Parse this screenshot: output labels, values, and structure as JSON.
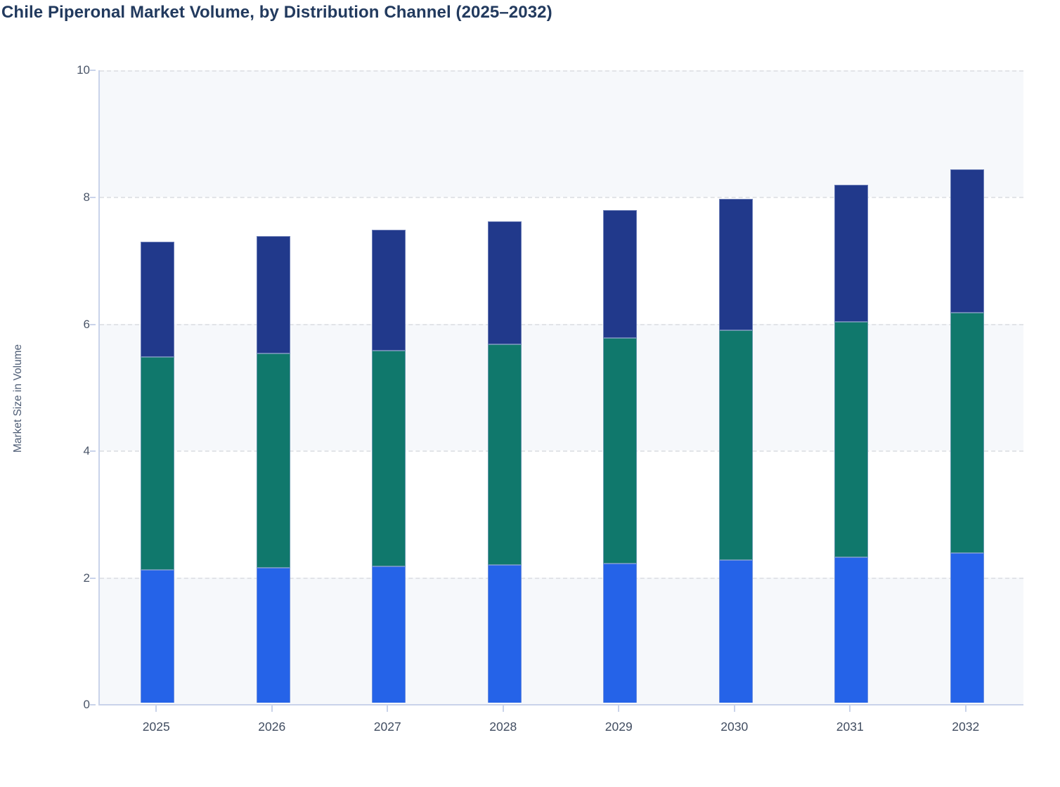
{
  "title": "Chile Piperonal Market Volume, by Distribution Channel (2025–2032)",
  "y_axis": {
    "label": "Market Size in Volume",
    "ticks": [
      0,
      2,
      4,
      6,
      8,
      10
    ],
    "range": [
      0,
      10
    ]
  },
  "x_axis": {
    "categories": [
      "2025",
      "2026",
      "2027",
      "2028",
      "2029",
      "2030",
      "2031",
      "2032"
    ]
  },
  "colors": {
    "bottom_segment": "#2563e8",
    "middle_segment": "#10786c",
    "top_segment": "#21398b",
    "title_text": "#223a5e",
    "axis_text": "#4a5568",
    "axis_line": "#c9d3ea",
    "gridline": "#e2e4e8",
    "shaded_band": "#f6f8fb"
  },
  "chart_data": {
    "type": "bar",
    "stacked": true,
    "title": "Chile Piperonal Market Volume, by Distribution Channel (2025–2032)",
    "xlabel": "",
    "ylabel": "Market Size in Volume",
    "ylim": [
      0,
      10
    ],
    "grid": "horizontal-dashed",
    "legend_position": "none",
    "categories": [
      "2025",
      "2026",
      "2027",
      "2028",
      "2029",
      "2030",
      "2031",
      "2032"
    ],
    "series": [
      {
        "name": "bottom (blue)",
        "values": [
          2.1,
          2.13,
          2.15,
          2.17,
          2.2,
          2.25,
          2.3,
          2.36
        ]
      },
      {
        "name": "middle (teal)",
        "values": [
          3.35,
          3.38,
          3.41,
          3.48,
          3.55,
          3.63,
          3.71,
          3.79
        ]
      },
      {
        "name": "top (navy)",
        "values": [
          1.82,
          1.85,
          1.9,
          1.95,
          2.02,
          2.07,
          2.16,
          2.27
        ]
      }
    ],
    "stack_totals": [
      7.27,
      7.36,
      7.46,
      7.61,
      7.77,
      7.95,
      8.17,
      8.42
    ]
  }
}
